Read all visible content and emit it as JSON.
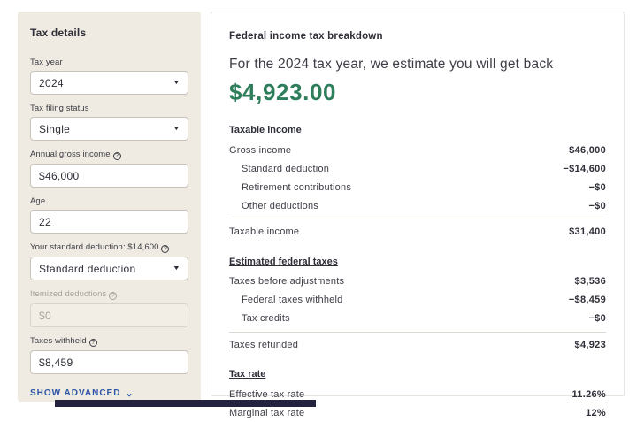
{
  "colors": {
    "sidebar_bg": "#f0ebe2",
    "refund_green": "#2e7d5b",
    "link_blue": "#2c55a4"
  },
  "sidebar": {
    "title": "Tax details",
    "fields": [
      {
        "name": "tax-year",
        "label": "Tax year",
        "value": "2024",
        "control": "select",
        "info": false,
        "disabled": false
      },
      {
        "name": "tax-filing-status",
        "label": "Tax filing status",
        "value": "Single",
        "control": "select",
        "info": false,
        "disabled": false
      },
      {
        "name": "annual-gross-income",
        "label": "Annual gross income",
        "value": "$46,000",
        "control": "input",
        "info": true,
        "disabled": false
      },
      {
        "name": "age",
        "label": "Age",
        "value": "22",
        "control": "input",
        "info": false,
        "disabled": false
      },
      {
        "name": "standard-deduction",
        "label": "Your standard deduction: $14,600",
        "value": "Standard deduction",
        "control": "select",
        "info": true,
        "disabled": false
      },
      {
        "name": "itemized-deductions",
        "label": "Itemized deductions",
        "value": "$0",
        "control": "input",
        "info": true,
        "disabled": true
      },
      {
        "name": "taxes-withheld",
        "label": "Taxes withheld",
        "value": "$8,459",
        "control": "input",
        "info": true,
        "disabled": false
      }
    ],
    "show_advanced_label": "SHOW ADVANCED",
    "show_advanced_chevron": "⌄"
  },
  "breakdown": {
    "title": "Federal income tax breakdown",
    "intro": "For the 2024 tax year, we estimate you will get back",
    "refund_amount": "$4,923.00",
    "sections": [
      {
        "heading": "Taxable income",
        "rows": [
          {
            "label": "Gross income",
            "value": "$46,000",
            "indent": false
          },
          {
            "label": "Standard deduction",
            "value": "−$14,600",
            "indent": true
          },
          {
            "label": "Retirement contributions",
            "value": "−$0",
            "indent": true
          },
          {
            "label": "Other deductions",
            "value": "−$0",
            "indent": true
          }
        ],
        "total": {
          "label": "Taxable income",
          "value": "$31,400"
        }
      },
      {
        "heading": "Estimated federal taxes",
        "rows": [
          {
            "label": "Taxes before adjustments",
            "value": "$3,536",
            "indent": false
          },
          {
            "label": "Federal taxes withheld",
            "value": "−$8,459",
            "indent": true
          },
          {
            "label": "Tax credits",
            "value": "−$0",
            "indent": true
          }
        ],
        "total": {
          "label": "Taxes refunded",
          "value": "$4,923"
        }
      },
      {
        "heading": "Tax rate",
        "rows": [
          {
            "label": "Effective tax rate",
            "value": "11.26%",
            "indent": false
          },
          {
            "label": "Marginal tax rate",
            "value": "12%",
            "indent": false
          }
        ],
        "total": null
      }
    ]
  }
}
